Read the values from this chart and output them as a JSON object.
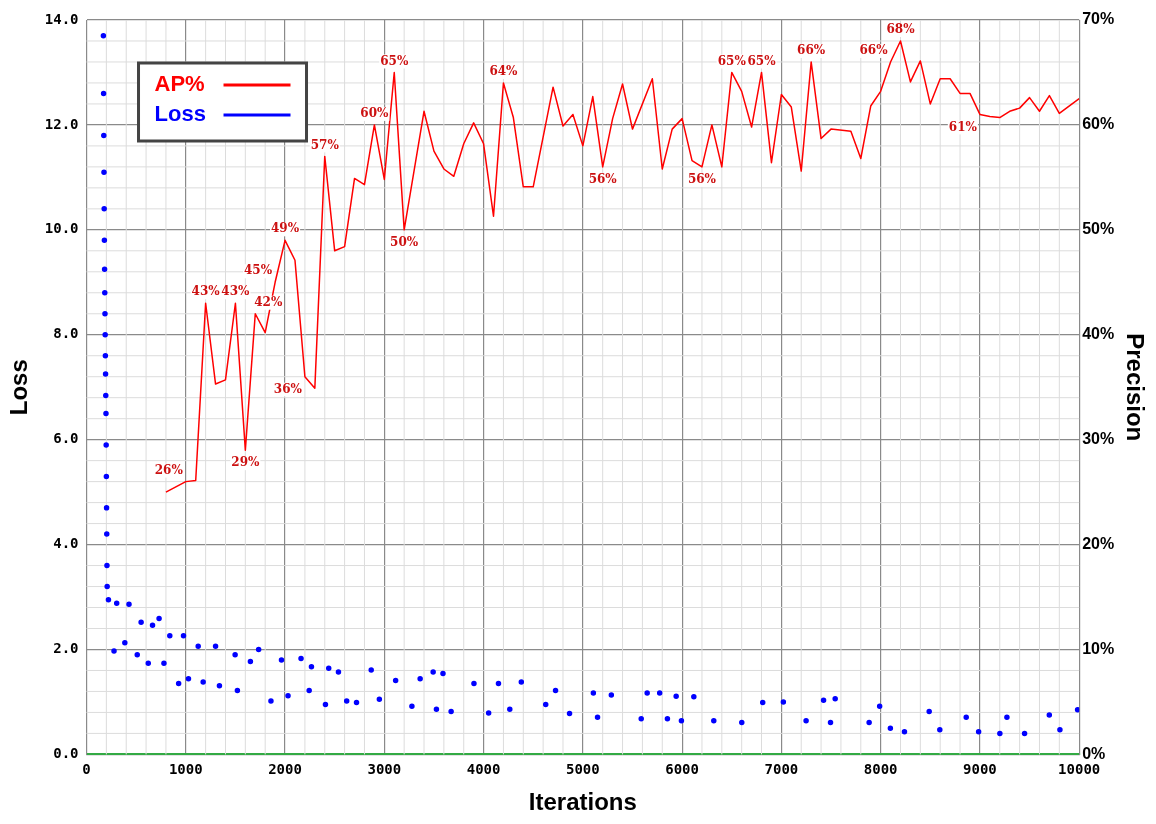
{
  "chart_data": {
    "type": "line",
    "xlabel": "Iterations",
    "ylabel": "Loss",
    "y2label": "Precision",
    "grid": true,
    "legend": "top left",
    "xlim": [
      0,
      10000
    ],
    "xticks": [
      0,
      1000,
      2000,
      3000,
      4000,
      5000,
      6000,
      7000,
      8000,
      9000,
      10000
    ],
    "ylim": [
      0,
      14
    ],
    "yticks": [
      {
        "value": 0,
        "label": "0.0"
      },
      {
        "value": 2,
        "label": "2.0"
      },
      {
        "value": 4,
        "label": "4.0"
      },
      {
        "value": 6,
        "label": "6.0"
      },
      {
        "value": 8,
        "label": "8.0"
      },
      {
        "value": 10,
        "label": "10.0"
      },
      {
        "value": 12,
        "label": "12.0"
      },
      {
        "value": 14,
        "label": "14.0"
      }
    ],
    "y2lim": [
      0,
      70
    ],
    "y2ticks": [
      {
        "value": 0,
        "label": "0%"
      },
      {
        "value": 10,
        "label": "10%"
      },
      {
        "value": 20,
        "label": "20%"
      },
      {
        "value": 30,
        "label": "30%"
      },
      {
        "value": 40,
        "label": "40%"
      },
      {
        "value": 50,
        "label": "50%"
      },
      {
        "value": 60,
        "label": "60%"
      },
      {
        "value": 70,
        "label": "70%"
      }
    ],
    "series": [
      {
        "name": "AP%",
        "axis": "y2",
        "color": "#ff0000",
        "marker": "none",
        "x": [
          800,
          1000,
          1100,
          1200,
          1300,
          1400,
          1500,
          1600,
          1700,
          1800,
          1900,
          2000,
          2100,
          2200,
          2300,
          2400,
          2500,
          2600,
          2700,
          2800,
          2900,
          3000,
          3100,
          3200,
          3400,
          3500,
          3600,
          3700,
          3800,
          3900,
          4000,
          4100,
          4200,
          4300,
          4400,
          4500,
          4700,
          4800,
          4900,
          5000,
          5100,
          5200,
          5300,
          5400,
          5500,
          5700,
          5800,
          5900,
          6000,
          6100,
          6200,
          6300,
          6400,
          6500,
          6600,
          6700,
          6800,
          6900,
          7000,
          7100,
          7200,
          7300,
          7400,
          7500,
          7700,
          7800,
          7900,
          8000,
          8100,
          8200,
          8300,
          8400,
          8500,
          8600,
          8700,
          8800,
          8900,
          9000,
          9100,
          9200,
          9300,
          9400,
          9500,
          9600,
          9700,
          9800,
          10000
        ],
        "values": [
          25,
          26,
          26.1,
          43,
          35.3,
          35.7,
          43,
          29,
          42,
          40.2,
          45,
          49,
          47.1,
          36,
          34.9,
          57,
          48,
          48.4,
          54.9,
          54.3,
          60,
          54.8,
          65,
          50,
          61.3,
          57.5,
          55.8,
          55.1,
          58.2,
          60.2,
          58.2,
          51.3,
          64,
          60.7,
          54.1,
          54.1,
          63.6,
          59.9,
          61,
          58,
          62.7,
          56,
          60.6,
          63.9,
          59.6,
          64.4,
          55.8,
          59.6,
          60.6,
          56.6,
          56,
          60,
          56,
          65,
          63.2,
          59.8,
          65,
          56.4,
          62.9,
          61.7,
          55.6,
          66,
          58.7,
          59.6,
          59.4,
          56.8,
          61.8,
          63.2,
          66,
          68,
          64.1,
          66.1,
          62,
          64.4,
          64.4,
          63,
          63,
          61,
          60.8,
          60.7,
          61.3,
          61.6,
          62.6,
          61.3,
          62.8,
          61.1,
          62.5
        ],
        "value_labels": [
          null,
          "26%",
          null,
          "43%",
          null,
          null,
          "43%",
          "29%",
          "42%",
          null,
          "45%",
          "49%",
          null,
          "36%",
          null,
          "57%",
          null,
          null,
          null,
          null,
          "60%",
          null,
          "65%",
          "50%",
          null,
          null,
          null,
          null,
          null,
          null,
          null,
          null,
          "64%",
          null,
          null,
          null,
          null,
          null,
          null,
          null,
          null,
          "56%",
          null,
          null,
          null,
          null,
          null,
          null,
          null,
          null,
          "56%",
          null,
          null,
          "65%",
          null,
          null,
          "65%",
          null,
          null,
          null,
          null,
          "66%",
          null,
          null,
          null,
          null,
          null,
          null,
          "66%",
          "68%",
          null,
          null,
          null,
          null,
          null,
          null,
          null,
          "61%",
          null,
          null,
          null,
          null,
          null,
          null,
          null,
          null,
          null
        ]
      },
      {
        "name": "Loss",
        "type": "scatter",
        "axis": "y",
        "color": "#0000ff",
        "marker": "circle",
        "x": [
          170,
          172,
          174,
          176,
          178,
          180,
          182,
          184,
          186,
          188,
          190,
          192,
          194,
          196,
          198,
          200,
          202,
          204,
          206,
          208,
          221,
          277,
          304,
          386,
          428,
          511,
          550,
          622,
          665,
          731,
          780,
          839,
          928,
          977,
          1027,
          1125,
          1175,
          1300,
          1339,
          1497,
          1520,
          1651,
          1734,
          1858,
          1964,
          2030,
          2161,
          2243,
          2266,
          2407,
          2440,
          2538,
          2621,
          2720,
          2868,
          2950,
          3114,
          3278,
          3361,
          3492,
          3525,
          3591,
          3673,
          3903,
          4051,
          4150,
          4264,
          4380,
          4626,
          4725,
          4866,
          5106,
          5148,
          5287,
          5588,
          5648,
          5774,
          5852,
          5940,
          5993,
          6118,
          6319,
          6601,
          6812,
          7020,
          7249,
          7425,
          7495,
          7542,
          7884,
          7990,
          8098,
          8240,
          8489,
          8596,
          8862,
          8987,
          9201,
          9272,
          9450,
          9699,
          9806,
          9984
        ],
        "values": [
          13.7,
          12.6,
          11.8,
          11.1,
          10.4,
          9.8,
          9.25,
          8.8,
          8.4,
          8,
          7.6,
          7.25,
          6.84,
          6.5,
          5.9,
          5.3,
          4.7,
          4.2,
          3.6,
          3.2,
          2.95,
          1.97,
          2.88,
          2.13,
          2.86,
          1.9,
          2.52,
          1.74,
          2.46,
          2.59,
          1.74,
          2.26,
          1.35,
          2.26,
          1.44,
          2.06,
          1.38,
          2.06,
          1.31,
          1.9,
          1.22,
          1.77,
          2,
          1.02,
          1.8,
          1.12,
          1.83,
          1.22,
          1.67,
          0.95,
          1.64,
          1.57,
          1.02,
          0.99,
          1.61,
          1.05,
          1.41,
          0.92,
          1.44,
          1.57,
          0.86,
          1.54,
          0.82,
          1.35,
          0.79,
          1.35,
          0.86,
          1.38,
          0.95,
          1.22,
          0.78,
          1.17,
          0.71,
          1.13,
          0.68,
          1.17,
          1.17,
          0.68,
          1.11,
          0.64,
          1.1,
          0.64,
          0.61,
          0.99,
          1,
          0.64,
          1.03,
          0.61,
          1.06,
          0.61,
          0.92,
          0.5,
          0.43,
          0.82,
          0.47,
          0.71,
          0.43,
          0.4,
          0.71,
          0.4,
          0.75,
          0.47,
          0.85
        ]
      }
    ]
  }
}
